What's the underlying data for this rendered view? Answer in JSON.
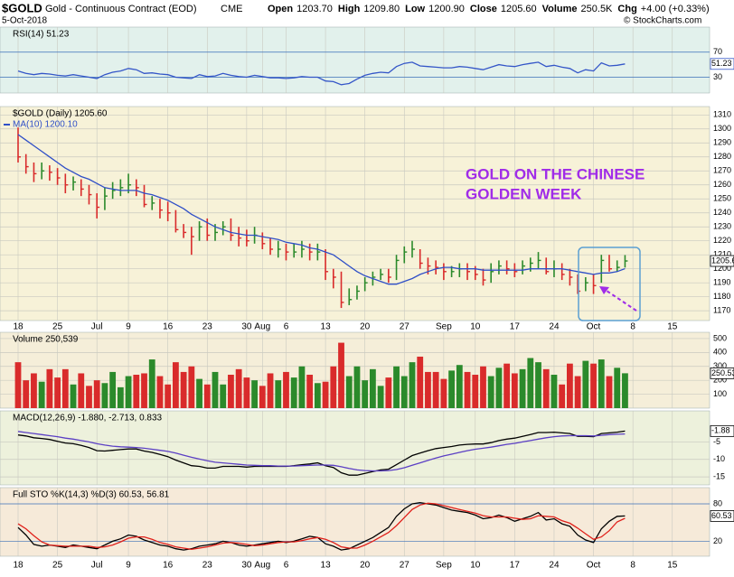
{
  "header": {
    "symbol": "$GOLD",
    "name": "Gold - Continuous Contract (EOD)",
    "exchange": "CME",
    "date": "5-Oct-2018",
    "quote": [
      {
        "label": "Open",
        "value": "1203.70"
      },
      {
        "label": "High",
        "value": "1209.80"
      },
      {
        "label": "Low",
        "value": "1200.90"
      },
      {
        "label": "Close",
        "value": "1205.60"
      },
      {
        "label": "Volume",
        "value": "250.5K"
      },
      {
        "label": "Chg",
        "value": "+4.00 (+0.33%)"
      }
    ],
    "copyright": "© StockCharts.com"
  },
  "chart_data": [
    {
      "type": "line",
      "title": "RSI(14) 51.23",
      "ylim": [
        4.8,
        110
      ],
      "yticks": [
        30,
        70
      ],
      "grid": true,
      "series": [
        {
          "name": "RSI(14)",
          "color": "#3456c8",
          "values": [
            40,
            36,
            34,
            36,
            35,
            33,
            32,
            34,
            32,
            30,
            28,
            34,
            38,
            40,
            44,
            42,
            36,
            37,
            35,
            34,
            30,
            29,
            28,
            34,
            31,
            32,
            36,
            33,
            31,
            30,
            33,
            31,
            29,
            29,
            28,
            29,
            31,
            30,
            30,
            24,
            23,
            18,
            20,
            27,
            33,
            36,
            38,
            37,
            47,
            52,
            54,
            48,
            47,
            46,
            45,
            45,
            47,
            46,
            44,
            42,
            46,
            50,
            48,
            47,
            50,
            52,
            54,
            47,
            49,
            46,
            44,
            37,
            42,
            40,
            53,
            48,
            49,
            51.23
          ]
        }
      ]
    },
    {
      "type": "ohlc",
      "title": "$GOLD (Daily) 1205.60",
      "ylim": [
        1163,
        1316
      ],
      "yticks": [
        1170,
        1180,
        1190,
        1200,
        1210,
        1220,
        1230,
        1240,
        1250,
        1260,
        1270,
        1280,
        1290,
        1300,
        1310
      ],
      "grid": true,
      "colors": {
        "up": "#2b8a2b",
        "down": "#d92b2b"
      },
      "annotations": [
        "GOLD ON THE CHINESE",
        "GOLDEN WEEK"
      ],
      "x": [
        "2018-06-18",
        "2018-06-19",
        "2018-06-20",
        "2018-06-21",
        "2018-06-22",
        "2018-06-25",
        "2018-06-26",
        "2018-06-27",
        "2018-06-28",
        "2018-06-29",
        "2018-07-02",
        "2018-07-03",
        "2018-07-05",
        "2018-07-06",
        "2018-07-09",
        "2018-07-10",
        "2018-07-11",
        "2018-07-12",
        "2018-07-13",
        "2018-07-16",
        "2018-07-17",
        "2018-07-18",
        "2018-07-19",
        "2018-07-20",
        "2018-07-23",
        "2018-07-24",
        "2018-07-25",
        "2018-07-26",
        "2018-07-27",
        "2018-07-30",
        "2018-07-31",
        "2018-08-01",
        "2018-08-02",
        "2018-08-03",
        "2018-08-06",
        "2018-08-07",
        "2018-08-08",
        "2018-08-09",
        "2018-08-10",
        "2018-08-13",
        "2018-08-14",
        "2018-08-15",
        "2018-08-16",
        "2018-08-17",
        "2018-08-20",
        "2018-08-21",
        "2018-08-22",
        "2018-08-23",
        "2018-08-24",
        "2018-08-27",
        "2018-08-28",
        "2018-08-29",
        "2018-08-30",
        "2018-08-31",
        "2018-09-04",
        "2018-09-05",
        "2018-09-06",
        "2018-09-07",
        "2018-09-10",
        "2018-09-11",
        "2018-09-12",
        "2018-09-13",
        "2018-09-14",
        "2018-09-17",
        "2018-09-18",
        "2018-09-19",
        "2018-09-20",
        "2018-09-21",
        "2018-09-24",
        "2018-09-25",
        "2018-09-26",
        "2018-09-27",
        "2018-09-28",
        "2018-10-01",
        "2018-10-02",
        "2018-10-03",
        "2018-10-04",
        "2018-10-05"
      ],
      "xticks": [
        {
          "value": "2018-06-18",
          "label": "18"
        },
        {
          "value": "2018-06-25",
          "label": "25"
        },
        {
          "value": "2018-07-02",
          "label": "Jul"
        },
        {
          "value": "2018-07-09",
          "label": "9"
        },
        {
          "value": "2018-07-16",
          "label": "16"
        },
        {
          "value": "2018-07-23",
          "label": "23"
        },
        {
          "value": "2018-07-30",
          "label": "30"
        },
        {
          "value": "2018-08-01",
          "label": "Aug"
        },
        {
          "value": "2018-08-06",
          "label": "6"
        },
        {
          "value": "2018-08-13",
          "label": "13"
        },
        {
          "value": "2018-08-20",
          "label": "20"
        },
        {
          "value": "2018-08-27",
          "label": "27"
        },
        {
          "value": "2018-09-04",
          "label": "Sep"
        },
        {
          "value": "2018-09-10",
          "label": "10"
        },
        {
          "value": "2018-09-17",
          "label": "17"
        },
        {
          "value": "2018-09-24",
          "label": "24"
        },
        {
          "value": "2018-10-01",
          "label": "Oct"
        },
        {
          "value": "2018-10-08",
          "label": "8"
        },
        {
          "value": "2018-10-15",
          "label": "15"
        }
      ],
      "high": [
        1301,
        1282,
        1276,
        1276,
        1274,
        1272,
        1268,
        1266,
        1264,
        1260,
        1254,
        1258,
        1262,
        1264,
        1268,
        1264,
        1260,
        1252,
        1250,
        1248,
        1242,
        1232,
        1230,
        1234,
        1236,
        1232,
        1234,
        1236,
        1230,
        1228,
        1230,
        1226,
        1222,
        1220,
        1218,
        1218,
        1220,
        1218,
        1218,
        1214,
        1200,
        1198,
        1186,
        1188,
        1194,
        1198,
        1200,
        1200,
        1210,
        1216,
        1220,
        1214,
        1208,
        1206,
        1204,
        1202,
        1204,
        1204,
        1202,
        1200,
        1204,
        1206,
        1206,
        1204,
        1206,
        1208,
        1212,
        1208,
        1206,
        1204,
        1200,
        1196,
        1194,
        1196,
        1210,
        1210,
        1206,
        1209.8
      ],
      "low": [
        1276,
        1268,
        1262,
        1264,
        1263,
        1260,
        1254,
        1256,
        1252,
        1246,
        1236,
        1242,
        1250,
        1252,
        1254,
        1252,
        1244,
        1242,
        1236,
        1234,
        1226,
        1222,
        1210,
        1220,
        1220,
        1220,
        1224,
        1220,
        1216,
        1216,
        1218,
        1214,
        1210,
        1208,
        1206,
        1208,
        1208,
        1206,
        1206,
        1192,
        1186,
        1172,
        1174,
        1178,
        1184,
        1188,
        1192,
        1190,
        1192,
        1204,
        1208,
        1200,
        1196,
        1196,
        1192,
        1194,
        1194,
        1192,
        1192,
        1188,
        1190,
        1196,
        1196,
        1194,
        1196,
        1198,
        1200,
        1196,
        1194,
        1192,
        1188,
        1182,
        1184,
        1182,
        1190,
        1198,
        1198,
        1200.9
      ],
      "close": [
        1280,
        1273,
        1268,
        1270,
        1269,
        1265,
        1260,
        1262,
        1257,
        1253,
        1244,
        1252,
        1256,
        1258,
        1260,
        1258,
        1246,
        1247,
        1242,
        1240,
        1228,
        1226,
        1223,
        1230,
        1224,
        1226,
        1230,
        1224,
        1222,
        1220,
        1224,
        1218,
        1214,
        1214,
        1212,
        1212,
        1214,
        1212,
        1212,
        1198,
        1194,
        1176,
        1178,
        1184,
        1190,
        1194,
        1196,
        1194,
        1206,
        1212,
        1214,
        1204,
        1202,
        1201,
        1198,
        1198,
        1200,
        1198,
        1196,
        1192,
        1198,
        1202,
        1200,
        1198,
        1202,
        1204,
        1206,
        1198,
        1200,
        1196,
        1194,
        1184,
        1190,
        1188,
        1206,
        1200,
        1201,
        1205.6
      ],
      "series": [
        {
          "name": "MA(10) 1200.10",
          "color": "#2f4fc7",
          "values": [
            1296,
            1292,
            1288,
            1284,
            1280,
            1276,
            1272,
            1269,
            1266,
            1264,
            1261,
            1258,
            1257,
            1256,
            1256,
            1256,
            1254,
            1253,
            1251,
            1249,
            1246,
            1243,
            1239,
            1236,
            1233,
            1230,
            1228,
            1226,
            1225,
            1224,
            1224,
            1223,
            1222,
            1221,
            1219,
            1218,
            1217,
            1215,
            1214,
            1212,
            1210,
            1206,
            1202,
            1198,
            1195,
            1193,
            1191,
            1189,
            1189,
            1191,
            1193,
            1196,
            1198,
            1200,
            1201,
            1201,
            1200,
            1200,
            1200,
            1199,
            1199,
            1199,
            1199,
            1199,
            1199,
            1200,
            1200,
            1200,
            1200,
            1200,
            1199,
            1198,
            1197,
            1196,
            1197,
            1197,
            1198,
            1200.1
          ]
        }
      ]
    },
    {
      "type": "bar",
      "title": "Volume 250,539",
      "ylim": [
        0,
        545
      ],
      "yticks": [
        100,
        200,
        300,
        400,
        500
      ],
      "grid": true,
      "colors": {
        "up": "#2b8a2b",
        "down": "#d92b2b"
      },
      "values": [
        330,
        200,
        250,
        190,
        280,
        220,
        280,
        170,
        250,
        160,
        200,
        180,
        260,
        150,
        230,
        240,
        250,
        350,
        230,
        170,
        330,
        260,
        300,
        210,
        170,
        260,
        170,
        240,
        280,
        220,
        200,
        160,
        250,
        200,
        260,
        220,
        300,
        240,
        180,
        190,
        300,
        470,
        230,
        300,
        200,
        280,
        160,
        220,
        300,
        230,
        330,
        370,
        260,
        260,
        210,
        270,
        310,
        260,
        240,
        300,
        230,
        290,
        320,
        250,
        280,
        360,
        330,
        280,
        240,
        170,
        320,
        230,
        340,
        320,
        350,
        230,
        290,
        250.539
      ]
    },
    {
      "type": "line",
      "title": "MACD(12,26,9) -1.880, -2.713, 0.833",
      "ylim": [
        -17.3,
        3.9
      ],
      "yticks": [
        -15,
        -10,
        -5
      ],
      "grid": true,
      "series": [
        {
          "name": "MACD",
          "color": "#000000",
          "values": [
            -3,
            -3.3,
            -3.8,
            -4,
            -4.3,
            -4.8,
            -5.3,
            -5.5,
            -6,
            -6.6,
            -7.5,
            -7.6,
            -7.4,
            -7.2,
            -7,
            -7,
            -7.6,
            -8,
            -8.6,
            -9.2,
            -10.2,
            -11,
            -11.8,
            -12,
            -12.5,
            -12.5,
            -12,
            -12,
            -12,
            -12.2,
            -12,
            -12,
            -12,
            -12,
            -12,
            -11.8,
            -11.5,
            -11.3,
            -11,
            -11.8,
            -12.3,
            -13.8,
            -14.5,
            -14.5,
            -14,
            -13.5,
            -13,
            -12.8,
            -11.5,
            -10.2,
            -8.9,
            -8.2,
            -7.5,
            -6.9,
            -6.6,
            -6.3,
            -5.9,
            -5.7,
            -5.6,
            -5.6,
            -5.2,
            -4.6,
            -4.2,
            -3.9,
            -3.4,
            -2.9,
            -2.3,
            -2.3,
            -2.2,
            -2.4,
            -2.6,
            -3.4,
            -3.4,
            -3.5,
            -2.6,
            -2.4,
            -2.2,
            -1.88
          ]
        },
        {
          "name": "Signal",
          "color": "#5b3fc4",
          "values": [
            -2,
            -2.3,
            -2.6,
            -2.9,
            -3.2,
            -3.5,
            -3.9,
            -4.2,
            -4.6,
            -5,
            -5.5,
            -5.9,
            -6.2,
            -6.4,
            -6.5,
            -6.6,
            -6.8,
            -7.1,
            -7.4,
            -7.7,
            -8.2,
            -8.8,
            -9.4,
            -9.9,
            -10.4,
            -10.8,
            -11,
            -11.2,
            -11.4,
            -11.6,
            -11.7,
            -11.8,
            -11.8,
            -11.9,
            -11.9,
            -11.9,
            -11.8,
            -11.7,
            -11.6,
            -11.6,
            -11.7,
            -12.1,
            -12.6,
            -13,
            -13.2,
            -13.3,
            -13.3,
            -13.2,
            -12.9,
            -12.4,
            -11.7,
            -11,
            -10.3,
            -9.6,
            -9,
            -8.5,
            -8,
            -7.5,
            -7.1,
            -6.8,
            -6.5,
            -6.1,
            -5.7,
            -5.4,
            -5,
            -4.6,
            -4.2,
            -3.8,
            -3.5,
            -3.3,
            -3.2,
            -3.2,
            -3.2,
            -3.3,
            -3.1,
            -2.9,
            -2.8,
            -2.713
          ]
        }
      ]
    },
    {
      "type": "line",
      "title": "Full STO %K(14,3) %D(3) 60.53, 56.81",
      "ylim": [
        -4,
        106
      ],
      "yticks": [
        20,
        80
      ],
      "grid": true,
      "series": [
        {
          "name": "%K",
          "color": "#000000",
          "values": [
            42,
            30,
            15,
            12,
            14,
            12,
            10,
            14,
            12,
            10,
            8,
            14,
            20,
            24,
            30,
            28,
            22,
            18,
            14,
            12,
            8,
            6,
            8,
            12,
            14,
            16,
            20,
            18,
            14,
            12,
            14,
            16,
            18,
            20,
            18,
            20,
            24,
            28,
            26,
            16,
            12,
            6,
            8,
            14,
            20,
            26,
            34,
            42,
            60,
            72,
            80,
            82,
            80,
            78,
            74,
            70,
            68,
            66,
            62,
            56,
            58,
            62,
            58,
            52,
            56,
            60,
            66,
            54,
            56,
            48,
            44,
            30,
            22,
            18,
            40,
            52,
            60,
            60.53
          ]
        },
        {
          "name": "%D",
          "color": "#e0201a",
          "values": [
            48,
            40,
            29,
            19,
            14,
            13,
            12,
            12,
            12,
            12,
            10,
            11,
            14,
            19,
            25,
            27,
            27,
            23,
            18,
            15,
            11,
            9,
            7,
            9,
            11,
            14,
            17,
            18,
            17,
            15,
            13,
            14,
            16,
            18,
            19,
            19,
            21,
            24,
            26,
            23,
            18,
            11,
            9,
            9,
            14,
            20,
            27,
            34,
            45,
            58,
            71,
            78,
            81,
            80,
            77,
            74,
            71,
            68,
            65,
            61,
            59,
            59,
            59,
            57,
            55,
            56,
            61,
            60,
            59,
            53,
            49,
            41,
            32,
            23,
            27,
            37,
            51,
            56.81
          ]
        }
      ]
    }
  ]
}
